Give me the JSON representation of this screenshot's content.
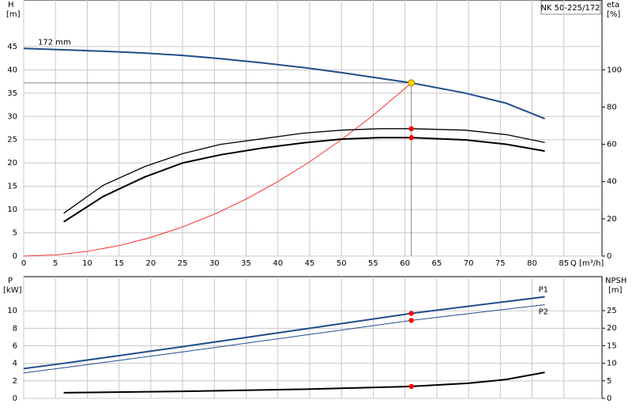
{
  "chart_data": [
    {
      "type": "line",
      "model": "NK 50-225/172",
      "y_label": "H",
      "y_unit": "[m]",
      "y2_label": "eta",
      "y2_unit": "[%]",
      "x_label": "Q [m³/h]",
      "xlim": [
        0,
        91
      ],
      "xticks": [
        0,
        5,
        10,
        15,
        20,
        25,
        30,
        35,
        40,
        45,
        50,
        55,
        60,
        65,
        70,
        75,
        80,
        85
      ],
      "ylim": [
        0,
        55
      ],
      "yticks": [
        0,
        5,
        10,
        15,
        20,
        25,
        30,
        35,
        40,
        45
      ],
      "y2lim": [
        0,
        137.5
      ],
      "y2ticks": [
        0,
        20,
        40,
        60,
        80,
        100
      ],
      "grid": true,
      "series": [
        {
          "name": "172 mm",
          "color": "#1f4e8c",
          "width": 2,
          "x": [
            0,
            6.3,
            12.5,
            19,
            25,
            31,
            37.5,
            44,
            50,
            56,
            61,
            69.5,
            76,
            82
          ],
          "values": [
            44.6,
            44.3,
            44.0,
            43.6,
            43.1,
            42.4,
            41.5,
            40.5,
            39.4,
            38.2,
            37.2,
            35.0,
            32.8,
            29.5
          ]
        },
        {
          "color": "#ff0000",
          "width": 0.8,
          "x": [
            0,
            5,
            10,
            15,
            20,
            25,
            30,
            35,
            40,
            45,
            50,
            55,
            60,
            61
          ],
          "values": [
            0,
            0.25,
            1,
            2.25,
            4,
            6.25,
            9,
            12.25,
            16,
            20.25,
            25,
            30.25,
            36,
            37.2
          ]
        },
        {
          "color": "#000000",
          "width": 1.3,
          "axis": "y2",
          "x": [
            6.3,
            12.5,
            19,
            25,
            31,
            37.5,
            44,
            50,
            56,
            61,
            69.5,
            76,
            82
          ],
          "values": [
            23,
            38,
            48,
            55,
            60,
            63,
            66,
            67.6,
            68.4,
            68.4,
            67.6,
            65.2,
            61
          ]
        },
        {
          "color": "#000000",
          "width": 2,
          "axis": "y2",
          "x": [
            6.3,
            12.5,
            19,
            25,
            31,
            37.5,
            44,
            50,
            56,
            61,
            69.5,
            76,
            82
          ],
          "values": [
            18.4,
            32,
            42.4,
            50,
            54.4,
            58,
            60.8,
            62.8,
            63.6,
            63.6,
            62.4,
            60,
            56.4
          ]
        }
      ],
      "points": [
        {
          "x": 61,
          "y": 37.2,
          "color": "#ffd700"
        },
        {
          "x": 61,
          "y": 68.4,
          "axis": "y2",
          "color": "#ff0000"
        },
        {
          "x": 61,
          "y": 63.6,
          "axis": "y2",
          "color": "#ff0000"
        }
      ]
    },
    {
      "type": "line",
      "y_label": "P",
      "y_unit": "[kW]",
      "y2_label": "NPSH",
      "y2_unit": "[m]",
      "xlim": [
        0,
        91
      ],
      "xticks": [
        0,
        5,
        10,
        15,
        20,
        25,
        30,
        35,
        40,
        45,
        50,
        55,
        60,
        65,
        70,
        75,
        80,
        85
      ],
      "ylim": [
        0,
        13.9
      ],
      "yticks": [
        0,
        2,
        4,
        6,
        8,
        10
      ],
      "y2lim": [
        0,
        34.7
      ],
      "y2ticks": [
        0,
        5,
        10,
        15,
        20,
        25
      ],
      "grid": true,
      "series": [
        {
          "name": "P1",
          "color": "#1f4e8c",
          "width": 2,
          "x": [
            0,
            6.3,
            25,
            44,
            61,
            82
          ],
          "values": [
            3.4,
            4.0,
            5.9,
            7.9,
            9.7,
            11.6
          ]
        },
        {
          "name": "P2",
          "color": "#1f4e8c",
          "width": 1,
          "x": [
            0,
            6.3,
            25,
            44,
            61,
            82
          ],
          "values": [
            2.9,
            3.5,
            5.3,
            7.2,
            8.9,
            10.7
          ]
        },
        {
          "color": "#000000",
          "width": 2,
          "axis": "y2",
          "x": [
            6.3,
            25,
            44,
            61,
            70,
            76,
            82
          ],
          "values": [
            1.6,
            2.0,
            2.6,
            3.4,
            4.3,
            5.4,
            7.4
          ]
        }
      ],
      "points": [
        {
          "x": 61,
          "y": 9.7,
          "color": "#ff0000"
        },
        {
          "x": 61,
          "y": 8.9,
          "color": "#ff0000"
        },
        {
          "x": 61,
          "y": 3.4,
          "axis": "y2",
          "color": "#ff0000"
        }
      ]
    }
  ]
}
